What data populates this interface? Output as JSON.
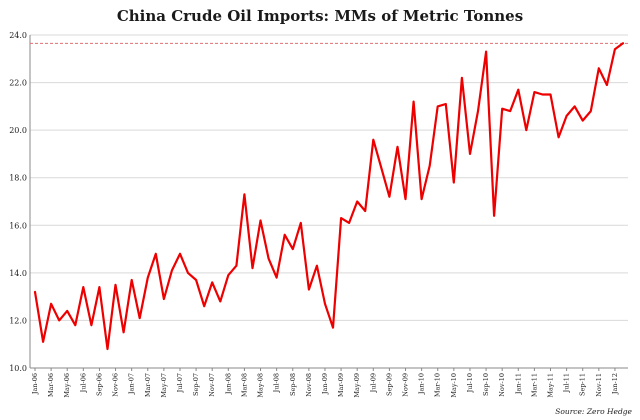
{
  "chart_data": {
    "type": "line",
    "title": "China Crude Oil Imports: MMs of Metric Tonnes",
    "source": "Source: Zero Hedge",
    "xlabel": "",
    "ylabel": "",
    "ylim": [
      10.0,
      24.0
    ],
    "y_ticks": [
      "10.0",
      "12.0",
      "14.0",
      "16.0",
      "18.0",
      "20.0",
      "22.0",
      "24.0"
    ],
    "x_tick_labels": [
      "Jan-06",
      "Mar-06",
      "May-06",
      "Jul-06",
      "Sep-06",
      "Nov-06",
      "Jan-07",
      "Mar-07",
      "May-07",
      "Jul-07",
      "Sep-07",
      "Nov-07",
      "Jan-08",
      "Mar-08",
      "May-08",
      "Jul-08",
      "Sep-08",
      "Nov-08",
      "Jan-09",
      "Mar-09",
      "May-09",
      "Jul-09",
      "Sep-09",
      "Nov-09",
      "Jan-10",
      "Mar-10",
      "May-10",
      "Jul-10",
      "Sep-10",
      "Nov-10",
      "Jan-11",
      "Mar-11",
      "May-11",
      "Jul-11",
      "Sep-11",
      "Nov-11",
      "Jan-12"
    ],
    "grid": true,
    "line_color": "#ee0000",
    "reference_line": {
      "value": 23.65,
      "color": "#e07070",
      "style": "dashed"
    },
    "series": [
      {
        "values": [
          13.2,
          11.1,
          12.7,
          12.0,
          12.4,
          11.8,
          13.4,
          11.8,
          13.4,
          10.8,
          13.5,
          11.5,
          13.7,
          12.1,
          13.8,
          14.8,
          12.9,
          14.1,
          14.8,
          14.0,
          13.7,
          12.6,
          13.6,
          12.8,
          13.9,
          14.3,
          17.3,
          14.2,
          16.2,
          14.6,
          13.8,
          15.6,
          15.0,
          16.1,
          13.3,
          14.3,
          12.7,
          11.7,
          16.3,
          16.1,
          17.0,
          16.6,
          19.6,
          18.4,
          17.2,
          19.3,
          17.1,
          21.2,
          17.1,
          18.5,
          21.0,
          21.1,
          17.8,
          22.2,
          19.0,
          20.8,
          23.3,
          16.4,
          20.9,
          20.8,
          21.7,
          20.0,
          21.6,
          21.5,
          21.5,
          19.7,
          20.6,
          21.0,
          20.4,
          20.8,
          22.6,
          21.9,
          23.4,
          23.65
        ]
      }
    ]
  }
}
